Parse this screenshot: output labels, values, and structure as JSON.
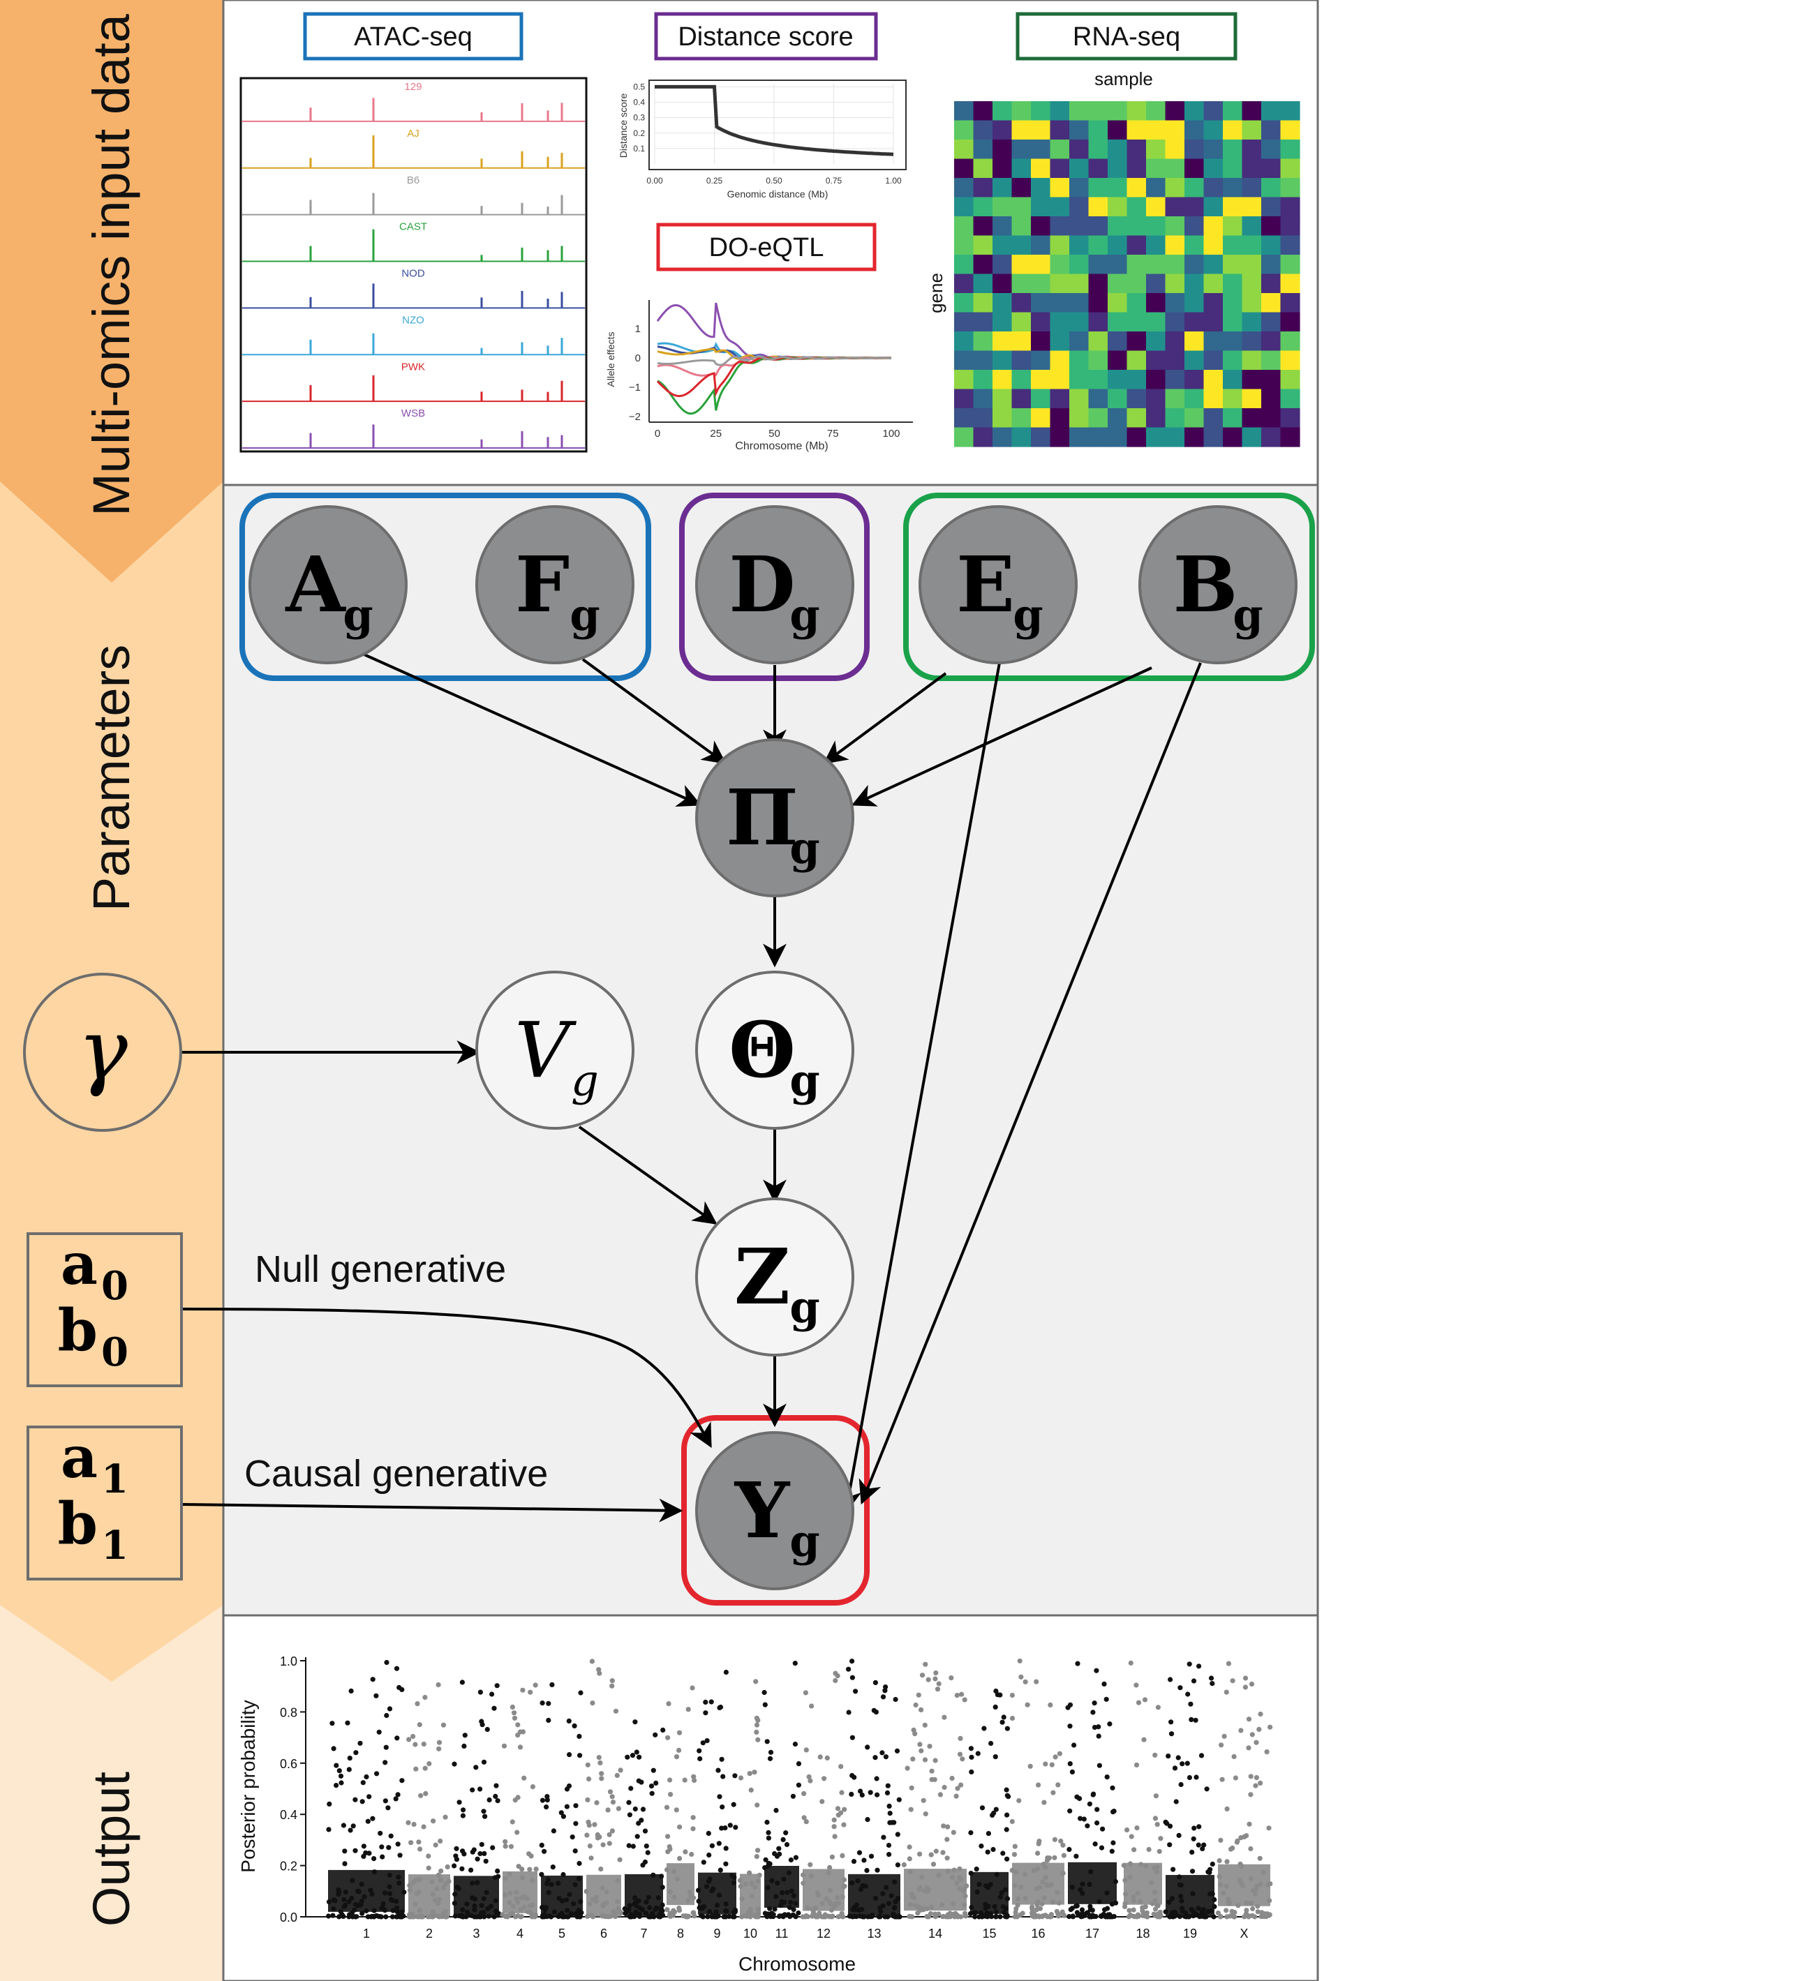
{
  "sections": {
    "input_label": "Multi-omics input data",
    "params_label": "Parameters",
    "output_label": "Output"
  },
  "panels": {
    "atac_title": "ATAC-seq",
    "distance_title": "Distance score",
    "rna_title": "RNA-seq",
    "doeqtl_title": "DO-eQTL"
  },
  "atac_strains": [
    {
      "name": "129",
      "color": "#e8788a"
    },
    {
      "name": "AJ",
      "color": "#d9a21b"
    },
    {
      "name": "B6",
      "color": "#9a9a9a"
    },
    {
      "name": "CAST",
      "color": "#2aa13b"
    },
    {
      "name": "NOD",
      "color": "#3a4fa0"
    },
    {
      "name": "NZO",
      "color": "#3aa7d8"
    },
    {
      "name": "PWK",
      "color": "#d9262b"
    },
    {
      "name": "WSB",
      "color": "#8a4fb0"
    }
  ],
  "distance_chart": {
    "ylabel": "Distance score",
    "xlabel": "Genomic distance (Mb)",
    "xticks": [
      "0.00",
      "0.25",
      "0.50",
      "0.75",
      "1.00"
    ],
    "yticks": [
      "0.5",
      "0.4",
      "0.3",
      "0.2",
      "0.1"
    ]
  },
  "eqtl_chart": {
    "ylabel": "Allele effects",
    "xlabel": "Chromosome (Mb)",
    "xticks": [
      "0",
      "25",
      "50",
      "75",
      "100"
    ],
    "yticks": [
      "1",
      "0",
      "−1",
      "−2"
    ]
  },
  "heatmap": {
    "xlabel": "sample",
    "ylabel": "gene"
  },
  "nodes": {
    "A": {
      "main": "A",
      "sub": "g"
    },
    "F": {
      "main": "F",
      "sub": "g"
    },
    "D": {
      "main": "D",
      "sub": "g"
    },
    "E": {
      "main": "E",
      "sub": "g"
    },
    "B": {
      "main": "B",
      "sub": "g"
    },
    "Pi": {
      "main": "Π",
      "sub": "g"
    },
    "Theta": {
      "main": "Θ",
      "sub": "g"
    },
    "V": {
      "main": "V",
      "sub": "g"
    },
    "Z": {
      "main": "Z",
      "sub": "g"
    },
    "Y": {
      "main": "Y",
      "sub": "g"
    },
    "gamma": {
      "main": "γ"
    }
  },
  "hyper": {
    "null_box": [
      {
        "main": "a",
        "sub": "0"
      },
      {
        "main": "b",
        "sub": "0"
      }
    ],
    "causal_box": [
      {
        "main": "a",
        "sub": "1"
      },
      {
        "main": "b",
        "sub": "1"
      }
    ]
  },
  "edge_labels": {
    "null": "Null generative",
    "causal": "Causal generative"
  },
  "manhattan": {
    "ylabel": "Posterior probability",
    "xlabel": "Chromosome",
    "yticks": [
      "0.0",
      "0.2",
      "0.4",
      "0.6",
      "0.8",
      "1.0"
    ],
    "chromosomes": [
      "1",
      "2",
      "3",
      "4",
      "5",
      "6",
      "7",
      "8",
      "9",
      "10",
      "11",
      "12",
      "13",
      "14",
      "15",
      "16",
      "17",
      "18",
      "19",
      "X"
    ]
  },
  "colors": {
    "orange_dark": "#f6b26b",
    "orange_mid": "#fdd6a4",
    "orange_light": "#fde9cf",
    "atac_blue": "#1a73b8",
    "distance_purple": "#6b2d91",
    "rna_green": "#1e6b3a",
    "param_green": "#1aa24a",
    "eqtl_red": "#e3262e",
    "node_dark": "#8c8d8f",
    "node_light": "#f5f5f5"
  }
}
